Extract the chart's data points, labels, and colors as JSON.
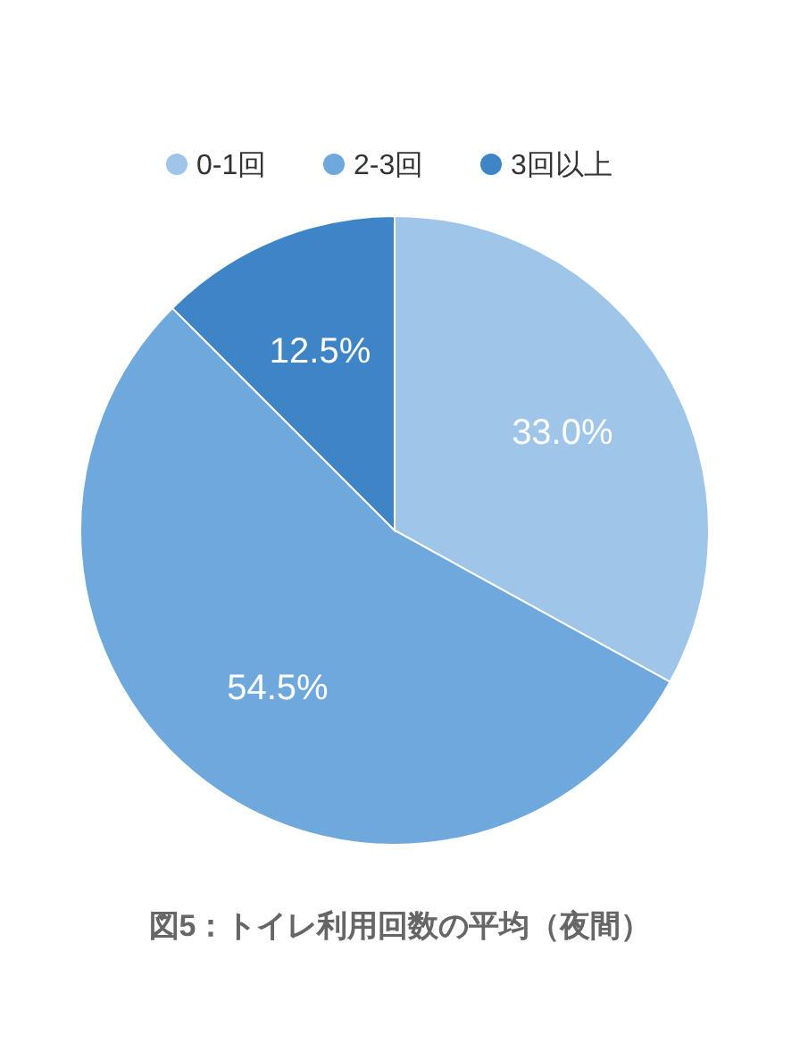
{
  "chart_data": {
    "type": "pie",
    "title": "図5：トイレ利用回数の平均（夜間）",
    "categories": [
      "0-1回",
      "2-3回",
      "3回以上"
    ],
    "values": [
      33.0,
      54.5,
      12.5
    ],
    "colors": [
      "#9fc5e8",
      "#6fa8dc",
      "#3d85c6"
    ],
    "value_labels": [
      "33.0%",
      "54.5%",
      "12.5%"
    ],
    "legend": "top"
  }
}
